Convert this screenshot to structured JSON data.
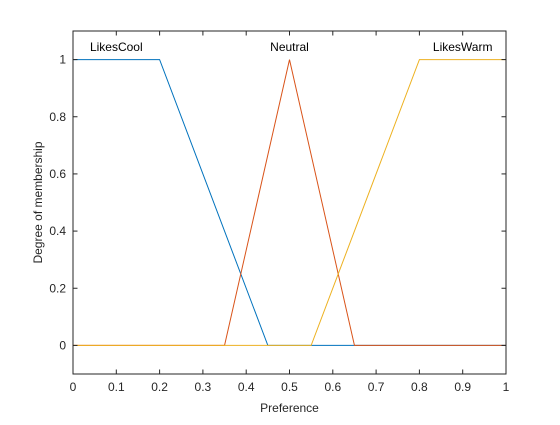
{
  "chart_data": {
    "type": "line",
    "title": "",
    "xlabel": "Preference",
    "ylabel": "Degree of membership",
    "xlim": [
      0,
      1
    ],
    "ylim": [
      -0.1,
      1.1
    ],
    "xticks": [
      "0",
      "0.1",
      "0.2",
      "0.3",
      "0.4",
      "0.5",
      "0.6",
      "0.7",
      "0.8",
      "0.9",
      "1"
    ],
    "yticks": [
      "0",
      "0.2",
      "0.4",
      "0.6",
      "0.8",
      "1"
    ],
    "grid": false,
    "series": [
      {
        "name": "LikesCool",
        "color": "#0072BD",
        "x": [
          0,
          0.2,
          0.45,
          1
        ],
        "y": [
          1,
          1,
          0,
          0
        ],
        "label_x": 0.1
      },
      {
        "name": "Neutral",
        "color": "#D95319",
        "x": [
          0,
          0.35,
          0.5,
          0.65,
          1
        ],
        "y": [
          0,
          0,
          1,
          0,
          0
        ],
        "label_x": 0.5
      },
      {
        "name": "LikesWarm",
        "color": "#EDB120",
        "x": [
          0,
          0.55,
          0.8,
          1
        ],
        "y": [
          0,
          0,
          1,
          1
        ],
        "label_x": 0.9
      }
    ]
  }
}
